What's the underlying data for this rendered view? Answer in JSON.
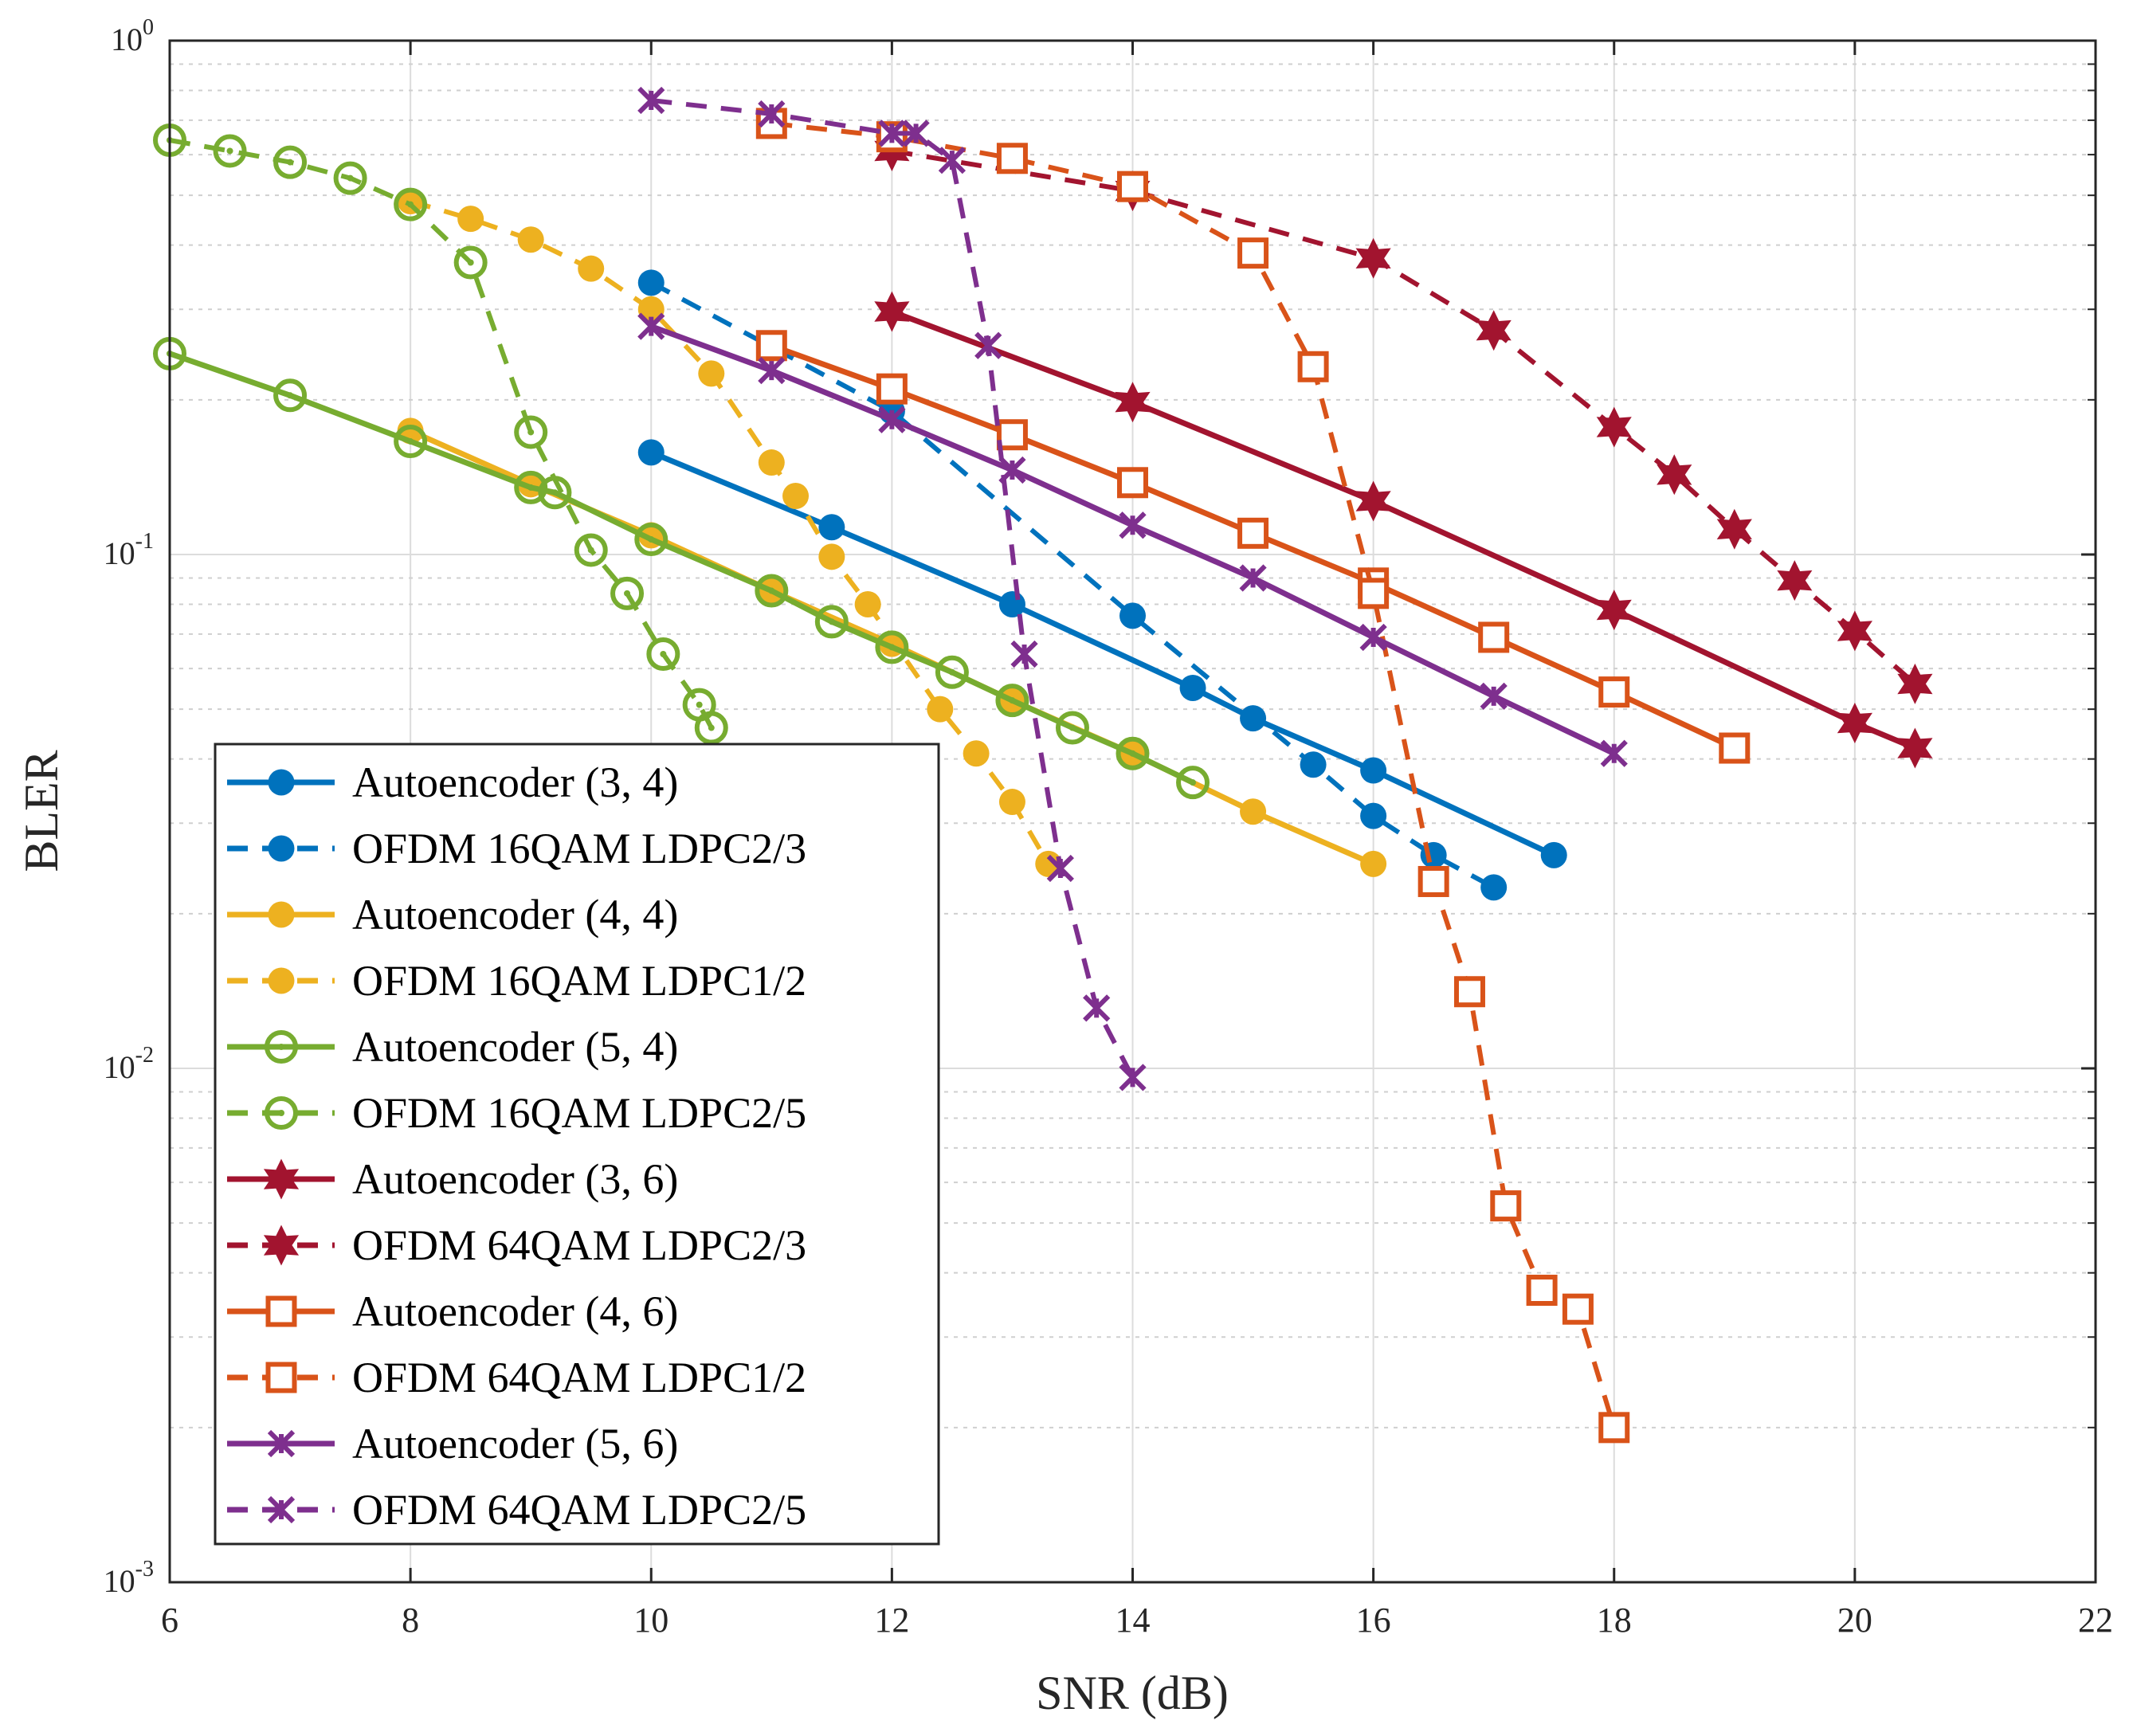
{
  "chart_data": {
    "type": "line",
    "xlabel": "SNR (dB)",
    "ylabel": "BLER",
    "xlim": [
      6,
      22
    ],
    "ylim": [
      0.001,
      1
    ],
    "yscale": "log",
    "grid": true,
    "legend_position": "bottom-left",
    "xticks": [
      "6",
      "8",
      "10",
      "12",
      "14",
      "16",
      "18",
      "20",
      "22"
    ],
    "yticks": [
      {
        "base": "10",
        "exp": "0"
      },
      {
        "base": "10",
        "exp": "-1"
      },
      {
        "base": "10",
        "exp": "-2"
      },
      {
        "base": "10",
        "exp": "-3"
      }
    ],
    "series": [
      {
        "name": "Autoencoder (3, 4)",
        "color": "#0072BD",
        "dash": false,
        "marker": "dot",
        "x": [
          10,
          11.5,
          13,
          14.5,
          15,
          16,
          17.5
        ],
        "y": [
          0.158,
          0.113,
          0.08,
          0.055,
          0.048,
          0.038,
          0.026
        ]
      },
      {
        "name": "OFDM 16QAM LDPC2/3",
        "color": "#0072BD",
        "dash": true,
        "marker": "dot",
        "x": [
          10,
          12,
          14,
          15.5,
          16,
          16.5,
          17
        ],
        "y": [
          0.338,
          0.19,
          0.076,
          0.039,
          0.031,
          0.026,
          0.0225
        ]
      },
      {
        "name": "Autoencoder (4, 4)",
        "color": "#EDB120",
        "dash": false,
        "marker": "dot",
        "x": [
          8,
          9,
          10,
          11,
          12,
          13,
          14,
          15,
          16
        ],
        "y": [
          0.174,
          0.137,
          0.109,
          0.085,
          0.067,
          0.052,
          0.041,
          0.0316,
          0.025
        ]
      },
      {
        "name": "OFDM 16QAM LDPC1/2",
        "color": "#EDB120",
        "dash": true,
        "marker": "dot",
        "x": [
          8,
          8.5,
          9,
          9.5,
          10,
          10.5,
          11,
          11.2,
          11.5,
          11.8,
          12.4,
          12.7,
          13,
          13.3
        ],
        "y": [
          0.487,
          0.45,
          0.41,
          0.36,
          0.3,
          0.225,
          0.151,
          0.13,
          0.099,
          0.08,
          0.05,
          0.041,
          0.033,
          0.025
        ]
      },
      {
        "name": "Autoencoder (5, 4)",
        "color": "#77AC30",
        "dash": false,
        "marker": "circle",
        "x": [
          6,
          7,
          8,
          9,
          9.2,
          10,
          11,
          11.5,
          12,
          12.5,
          13,
          13.5,
          14,
          14.5
        ],
        "y": [
          0.246,
          0.204,
          0.166,
          0.135,
          0.132,
          0.107,
          0.085,
          0.074,
          0.066,
          0.059,
          0.052,
          0.046,
          0.041,
          0.036
        ]
      },
      {
        "name": "OFDM 16QAM LDPC2/5",
        "color": "#77AC30",
        "dash": true,
        "marker": "circle",
        "x": [
          6,
          6.5,
          7,
          7.5,
          8,
          8.5,
          9,
          9.5,
          9.8,
          10.1,
          10.4,
          10.5
        ],
        "y": [
          0.64,
          0.61,
          0.58,
          0.54,
          0.48,
          0.37,
          0.173,
          0.102,
          0.084,
          0.064,
          0.051,
          0.046
        ]
      },
      {
        "name": "Autoencoder (3, 6)",
        "color": "#A2142F",
        "dash": false,
        "marker": "hexagram",
        "x": [
          12,
          14,
          16,
          18,
          20,
          20.5
        ],
        "y": [
          0.297,
          0.198,
          0.127,
          0.078,
          0.047,
          0.042
        ]
      },
      {
        "name": "OFDM 64QAM LDPC2/3",
        "color": "#A2142F",
        "dash": true,
        "marker": "hexagram",
        "x": [
          12,
          14,
          16,
          17,
          18,
          18.5,
          19,
          19.5,
          20,
          20.5
        ],
        "y": [
          0.61,
          0.51,
          0.377,
          0.273,
          0.177,
          0.143,
          0.112,
          0.089,
          0.071,
          0.056
        ]
      },
      {
        "name": "Autoencoder (4, 6)",
        "color": "#D95319",
        "dash": false,
        "marker": "square",
        "x": [
          11,
          12,
          13,
          14,
          15,
          16,
          17,
          18,
          19
        ],
        "y": [
          0.255,
          0.21,
          0.171,
          0.138,
          0.11,
          0.088,
          0.069,
          0.054,
          0.042
        ]
      },
      {
        "name": "OFDM 64QAM LDPC1/2",
        "color": "#D95319",
        "dash": true,
        "marker": "square",
        "x": [
          11,
          12,
          13,
          14,
          15,
          15.5,
          16,
          16.5,
          16.8,
          17.1,
          17.4,
          17.7,
          18
        ],
        "y": [
          0.69,
          0.65,
          0.59,
          0.52,
          0.386,
          0.232,
          0.084,
          0.0231,
          0.0141,
          0.0054,
          0.0037,
          0.0034,
          0.002
        ]
      },
      {
        "name": "Autoencoder (5, 6)",
        "color": "#7E2F8E",
        "dash": false,
        "marker": "x",
        "x": [
          10,
          11,
          12,
          13,
          14,
          15,
          16,
          17,
          18
        ],
        "y": [
          0.278,
          0.228,
          0.183,
          0.146,
          0.114,
          0.09,
          0.069,
          0.053,
          0.041
        ]
      },
      {
        "name": "OFDM 64QAM LDPC2/5",
        "color": "#7E2F8E",
        "dash": true,
        "marker": "x",
        "x": [
          10,
          11,
          12,
          12.2,
          12.5,
          12.8,
          13.1,
          13.4,
          13.7,
          14
        ],
        "y": [
          0.765,
          0.72,
          0.66,
          0.66,
          0.585,
          0.255,
          0.064,
          0.0245,
          0.0131,
          0.0096
        ]
      }
    ]
  }
}
